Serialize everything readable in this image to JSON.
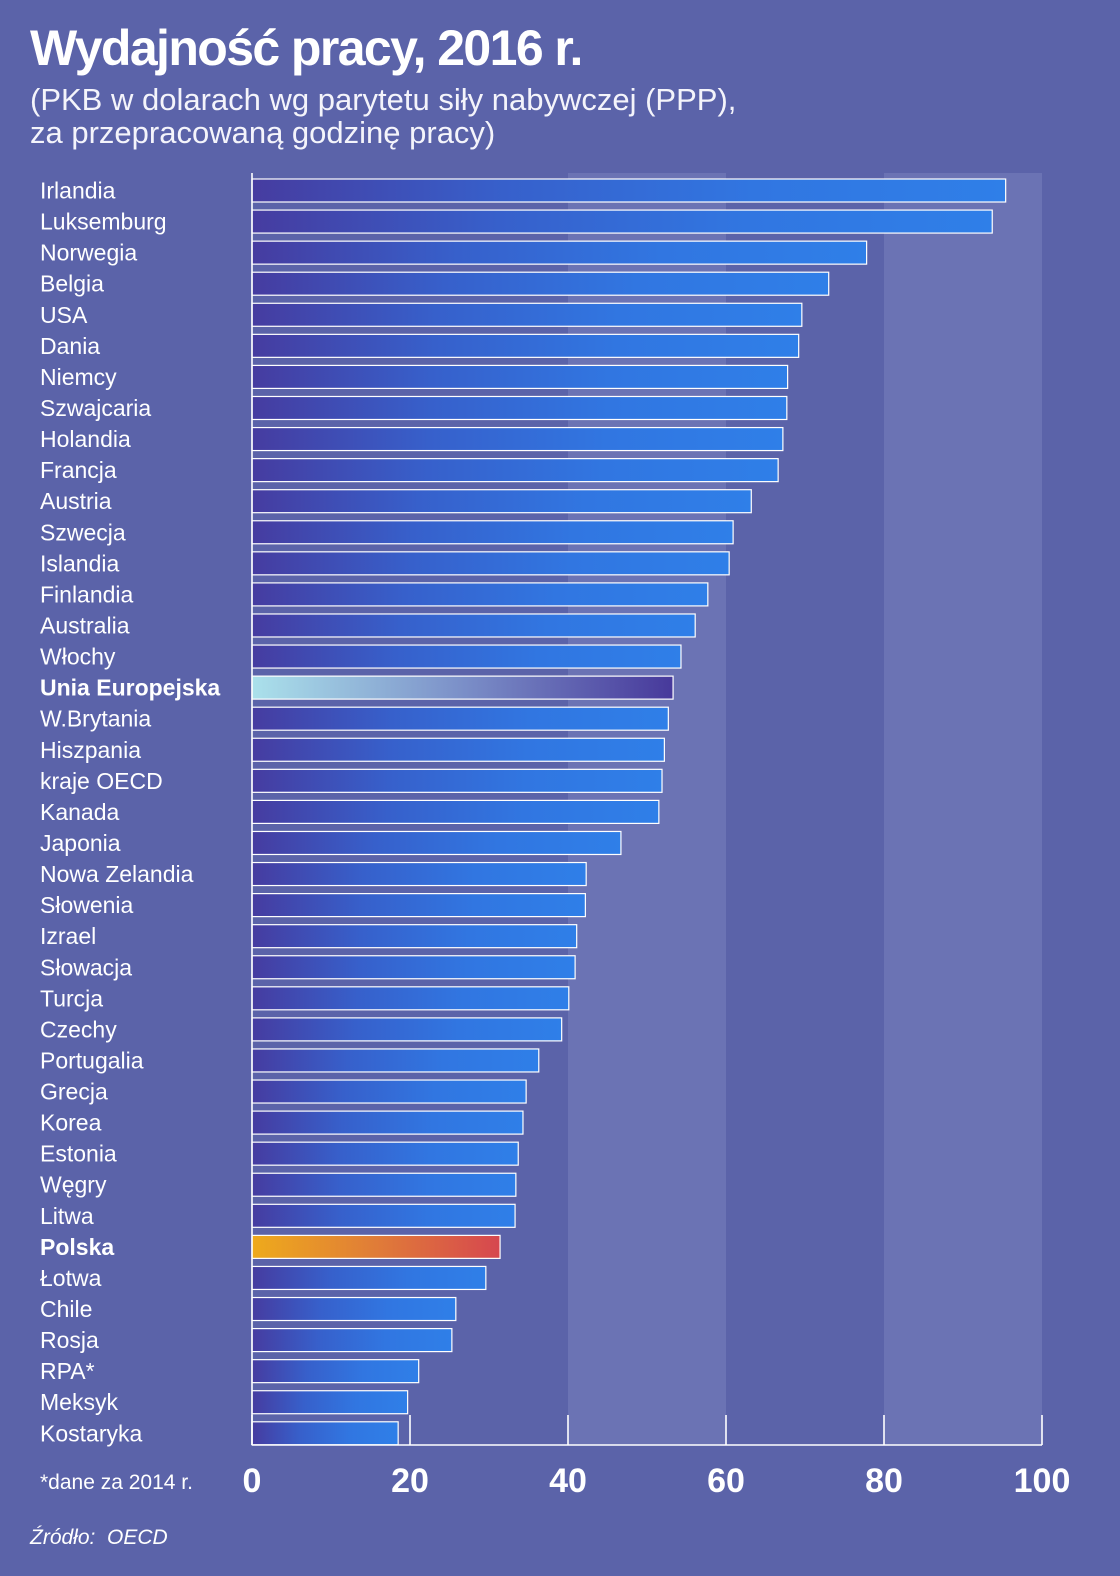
{
  "chart_data": {
    "type": "bar",
    "title": "Wydajność pracy, 2016 r.",
    "subtitle": [
      "(PKB w dolarach wg parytetu siły nabywczej (PPP),",
      "za przepracowaną godzinę pracy)"
    ],
    "categories": [
      "Irlandia",
      "Luksemburg",
      "Norwegia",
      "Belgia",
      "USA",
      "Dania",
      "Niemcy",
      "Szwajcaria",
      "Holandia",
      "Francja",
      "Austria",
      "Szwecja",
      "Islandia",
      "Finlandia",
      "Australia",
      "Włochy",
      "Unia Europejska",
      "W.Brytania",
      "Hiszpania",
      "kraje OECD",
      "Kanada",
      "Japonia",
      "Nowa Zelandia",
      "Słowenia",
      "Izrael",
      "Słowacja",
      "Turcja",
      "Czechy",
      "Portugalia",
      "Grecja",
      "Korea",
      "Estonia",
      "Węgry",
      "Litwa",
      "Polska",
      "Łotwa",
      "Chile",
      "Rosja",
      "RPA*",
      "Meksyk",
      "Kostaryka"
    ],
    "values": [
      95.4,
      93.7,
      77.8,
      73.0,
      69.6,
      69.2,
      67.8,
      67.7,
      67.2,
      66.6,
      63.2,
      60.9,
      60.4,
      57.7,
      56.1,
      54.3,
      53.3,
      52.7,
      52.2,
      51.9,
      51.5,
      46.7,
      42.3,
      42.2,
      41.1,
      40.9,
      40.1,
      39.2,
      36.3,
      34.7,
      34.3,
      33.7,
      33.4,
      33.3,
      31.4,
      29.6,
      25.8,
      25.3,
      21.1,
      19.7,
      18.5
    ],
    "xlim": [
      0,
      100
    ],
    "xticks": [
      0,
      20,
      40,
      60,
      80,
      100
    ],
    "shaded_ranges": [
      [
        40,
        60
      ],
      [
        80,
        100
      ]
    ],
    "grid": false,
    "bold_indices": [
      16,
      34
    ],
    "highlights": [
      {
        "index": 16,
        "gradient": [
          "#abe1eb",
          "#7b8fc8",
          "#47399b"
        ]
      },
      {
        "index": 34,
        "gradient": [
          "#eeaa1c",
          "#e07c38",
          "#d6474f"
        ]
      }
    ],
    "note": "*dane za 2014 r.",
    "source": "Źródło:  OECD",
    "colors": {
      "background": "#5b63a9",
      "band": "#6b73b4",
      "bar_gradient": [
        "#463ca0",
        "#3760cb",
        "#3176e1",
        "#2f7fe8"
      ],
      "bar_outline": "#ffffff",
      "axis": "#ffffff",
      "text": "#ffffff"
    }
  }
}
